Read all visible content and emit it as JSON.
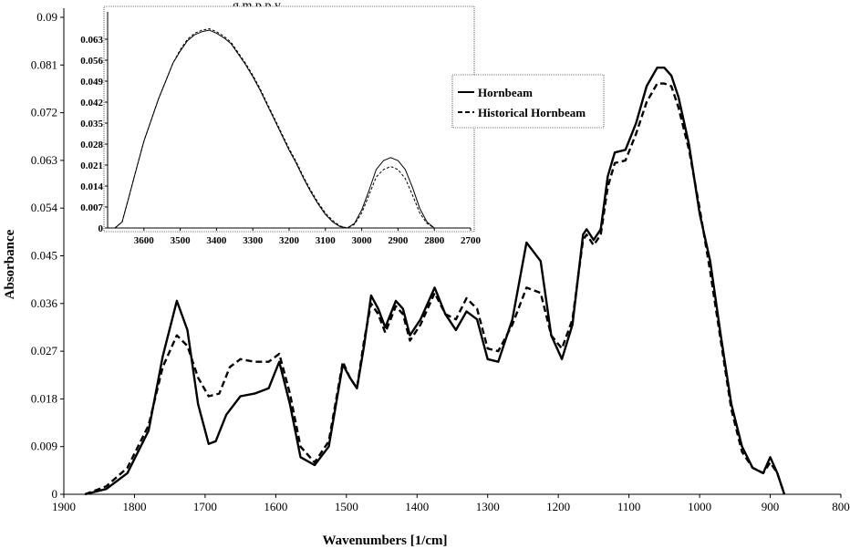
{
  "header_fragment": "g  m    p        p    y",
  "chart_data": [
    {
      "type": "line",
      "xlabel": "Wavenumbers [1/cm]",
      "ylabel": "Absorbance",
      "xlim": [
        1900,
        800
      ],
      "ylim": [
        0,
        0.09
      ],
      "xticks": [
        1900,
        1800,
        1700,
        1600,
        1500,
        1400,
        1300,
        1200,
        1100,
        1000,
        900,
        800
      ],
      "yticks": [
        "0",
        "0.009",
        "0.018",
        "0.027",
        "0.036",
        "0.045",
        "0.054",
        "0.063",
        "0.072",
        "0.081",
        "0.09"
      ],
      "series": [
        {
          "name": "Hornbeam",
          "style": "solid",
          "points": [
            [
              1870,
              0
            ],
            [
              1840,
              0.001
            ],
            [
              1810,
              0.004
            ],
            [
              1780,
              0.012
            ],
            [
              1760,
              0.026
            ],
            [
              1740,
              0.0365
            ],
            [
              1725,
              0.031
            ],
            [
              1710,
              0.017
            ],
            [
              1695,
              0.0095
            ],
            [
              1685,
              0.01
            ],
            [
              1670,
              0.015
            ],
            [
              1650,
              0.0185
            ],
            [
              1630,
              0.019
            ],
            [
              1610,
              0.02
            ],
            [
              1595,
              0.025
            ],
            [
              1580,
              0.017
            ],
            [
              1565,
              0.007
            ],
            [
              1545,
              0.0055
            ],
            [
              1525,
              0.009
            ],
            [
              1505,
              0.0245
            ],
            [
              1495,
              0.022
            ],
            [
              1485,
              0.02
            ],
            [
              1475,
              0.028
            ],
            [
              1465,
              0.0375
            ],
            [
              1455,
              0.035
            ],
            [
              1445,
              0.0315
            ],
            [
              1430,
              0.0365
            ],
            [
              1420,
              0.035
            ],
            [
              1410,
              0.03
            ],
            [
              1395,
              0.033
            ],
            [
              1375,
              0.039
            ],
            [
              1360,
              0.034
            ],
            [
              1345,
              0.031
            ],
            [
              1330,
              0.0345
            ],
            [
              1315,
              0.033
            ],
            [
              1300,
              0.0255
            ],
            [
              1285,
              0.025
            ],
            [
              1265,
              0.033
            ],
            [
              1245,
              0.0475
            ],
            [
              1225,
              0.044
            ],
            [
              1210,
              0.03
            ],
            [
              1195,
              0.0255
            ],
            [
              1180,
              0.032
            ],
            [
              1165,
              0.049
            ],
            [
              1160,
              0.05
            ],
            [
              1150,
              0.048
            ],
            [
              1140,
              0.05
            ],
            [
              1130,
              0.06
            ],
            [
              1120,
              0.0645
            ],
            [
              1105,
              0.065
            ],
            [
              1090,
              0.07
            ],
            [
              1075,
              0.077
            ],
            [
              1060,
              0.0805
            ],
            [
              1050,
              0.0805
            ],
            [
              1040,
              0.079
            ],
            [
              1030,
              0.075
            ],
            [
              1015,
              0.066
            ],
            [
              1000,
              0.053
            ],
            [
              985,
              0.044
            ],
            [
              970,
              0.03
            ],
            [
              955,
              0.017
            ],
            [
              940,
              0.009
            ],
            [
              925,
              0.005
            ],
            [
              910,
              0.004
            ],
            [
              900,
              0.007
            ],
            [
              890,
              0.004
            ],
            [
              880,
              0
            ]
          ]
        },
        {
          "name": "Historical Hornbeam",
          "style": "dashed",
          "points": [
            [
              1870,
              0
            ],
            [
              1840,
              0.0015
            ],
            [
              1810,
              0.005
            ],
            [
              1780,
              0.013
            ],
            [
              1760,
              0.024
            ],
            [
              1740,
              0.03
            ],
            [
              1725,
              0.028
            ],
            [
              1710,
              0.022
            ],
            [
              1695,
              0.0185
            ],
            [
              1680,
              0.019
            ],
            [
              1665,
              0.024
            ],
            [
              1650,
              0.0255
            ],
            [
              1630,
              0.025
            ],
            [
              1610,
              0.025
            ],
            [
              1595,
              0.0265
            ],
            [
              1580,
              0.019
            ],
            [
              1565,
              0.009
            ],
            [
              1545,
              0.006
            ],
            [
              1525,
              0.01
            ],
            [
              1505,
              0.025
            ],
            [
              1495,
              0.022
            ],
            [
              1485,
              0.02
            ],
            [
              1475,
              0.029
            ],
            [
              1465,
              0.036
            ],
            [
              1455,
              0.034
            ],
            [
              1445,
              0.0305
            ],
            [
              1430,
              0.0355
            ],
            [
              1420,
              0.034
            ],
            [
              1410,
              0.029
            ],
            [
              1395,
              0.032
            ],
            [
              1375,
              0.038
            ],
            [
              1360,
              0.034
            ],
            [
              1345,
              0.033
            ],
            [
              1330,
              0.037
            ],
            [
              1315,
              0.035
            ],
            [
              1300,
              0.0275
            ],
            [
              1285,
              0.027
            ],
            [
              1265,
              0.032
            ],
            [
              1245,
              0.039
            ],
            [
              1225,
              0.038
            ],
            [
              1210,
              0.03
            ],
            [
              1195,
              0.0275
            ],
            [
              1180,
              0.033
            ],
            [
              1165,
              0.048
            ],
            [
              1160,
              0.049
            ],
            [
              1150,
              0.047
            ],
            [
              1140,
              0.049
            ],
            [
              1130,
              0.058
            ],
            [
              1120,
              0.0625
            ],
            [
              1105,
              0.063
            ],
            [
              1090,
              0.068
            ],
            [
              1075,
              0.074
            ],
            [
              1060,
              0.0775
            ],
            [
              1050,
              0.0775
            ],
            [
              1040,
              0.077
            ],
            [
              1030,
              0.073
            ],
            [
              1015,
              0.065
            ],
            [
              1000,
              0.054
            ],
            [
              985,
              0.042
            ],
            [
              970,
              0.029
            ],
            [
              955,
              0.016
            ],
            [
              940,
              0.008
            ],
            [
              925,
              0.005
            ],
            [
              910,
              0.004
            ],
            [
              900,
              0.006
            ],
            [
              890,
              0.004
            ],
            [
              880,
              0
            ]
          ]
        }
      ],
      "legend": {
        "position": "right-of-inset",
        "entries": [
          "Hornbeam",
          "Historical Hornbeam"
        ]
      }
    },
    {
      "type": "line",
      "inset": true,
      "xlim": [
        3700,
        2700
      ],
      "ylim": [
        0,
        0.07
      ],
      "xticks": [
        3600,
        3500,
        3400,
        3300,
        3200,
        3100,
        3000,
        2900,
        2800,
        2700
      ],
      "yticks": [
        "0",
        "0.007",
        "0.014",
        "0.021",
        "0.028",
        "0.035",
        "0.042",
        "0.049",
        "0.056",
        "0.063"
      ],
      "series": [
        {
          "name": "Hornbeam",
          "style": "solid",
          "points": [
            [
              3680,
              0
            ],
            [
              3660,
              0.002
            ],
            [
              3640,
              0.011
            ],
            [
              3620,
              0.02
            ],
            [
              3600,
              0.029
            ],
            [
              3580,
              0.036
            ],
            [
              3560,
              0.043
            ],
            [
              3540,
              0.049
            ],
            [
              3520,
              0.055
            ],
            [
              3500,
              0.059
            ],
            [
              3480,
              0.0625
            ],
            [
              3460,
              0.0645
            ],
            [
              3440,
              0.0655
            ],
            [
              3420,
              0.066
            ],
            [
              3400,
              0.065
            ],
            [
              3380,
              0.0635
            ],
            [
              3360,
              0.0615
            ],
            [
              3340,
              0.058
            ],
            [
              3320,
              0.0545
            ],
            [
              3300,
              0.0505
            ],
            [
              3280,
              0.046
            ],
            [
              3260,
              0.041
            ],
            [
              3240,
              0.036
            ],
            [
              3220,
              0.031
            ],
            [
              3200,
              0.026
            ],
            [
              3180,
              0.0215
            ],
            [
              3160,
              0.0165
            ],
            [
              3140,
              0.012
            ],
            [
              3120,
              0.008
            ],
            [
              3100,
              0.0045
            ],
            [
              3080,
              0.002
            ],
            [
              3060,
              0.0005
            ],
            [
              3040,
              0
            ],
            [
              3020,
              0.0015
            ],
            [
              3000,
              0.006
            ],
            [
              2980,
              0.0125
            ],
            [
              2960,
              0.0195
            ],
            [
              2940,
              0.0225
            ],
            [
              2920,
              0.0235
            ],
            [
              2900,
              0.0225
            ],
            [
              2880,
              0.0195
            ],
            [
              2860,
              0.0135
            ],
            [
              2840,
              0.0065
            ],
            [
              2820,
              0.002
            ],
            [
              2800,
              0
            ],
            [
              2780,
              0
            ]
          ]
        },
        {
          "name": "Historical Hornbeam",
          "style": "dashed",
          "points": [
            [
              3680,
              0
            ],
            [
              3660,
              0.002
            ],
            [
              3640,
              0.011
            ],
            [
              3620,
              0.02
            ],
            [
              3600,
              0.029
            ],
            [
              3580,
              0.036
            ],
            [
              3560,
              0.043
            ],
            [
              3540,
              0.049
            ],
            [
              3520,
              0.055
            ],
            [
              3500,
              0.0595
            ],
            [
              3480,
              0.063
            ],
            [
              3460,
              0.065
            ],
            [
              3440,
              0.066
            ],
            [
              3420,
              0.0665
            ],
            [
              3400,
              0.0655
            ],
            [
              3380,
              0.064
            ],
            [
              3360,
              0.062
            ],
            [
              3340,
              0.0585
            ],
            [
              3320,
              0.055
            ],
            [
              3300,
              0.051
            ],
            [
              3280,
              0.0465
            ],
            [
              3260,
              0.0415
            ],
            [
              3240,
              0.0365
            ],
            [
              3220,
              0.0315
            ],
            [
              3200,
              0.0265
            ],
            [
              3180,
              0.022
            ],
            [
              3160,
              0.017
            ],
            [
              3140,
              0.0125
            ],
            [
              3120,
              0.0085
            ],
            [
              3100,
              0.005
            ],
            [
              3080,
              0.0025
            ],
            [
              3060,
              0.0007
            ],
            [
              3040,
              0
            ],
            [
              3020,
              0.0012
            ],
            [
              3000,
              0.005
            ],
            [
              2980,
              0.011
            ],
            [
              2960,
              0.017
            ],
            [
              2940,
              0.0195
            ],
            [
              2920,
              0.0205
            ],
            [
              2900,
              0.0195
            ],
            [
              2880,
              0.0165
            ],
            [
              2860,
              0.011
            ],
            [
              2840,
              0.005
            ],
            [
              2820,
              0.0015
            ],
            [
              2800,
              0
            ],
            [
              2780,
              0
            ]
          ]
        }
      ]
    }
  ]
}
